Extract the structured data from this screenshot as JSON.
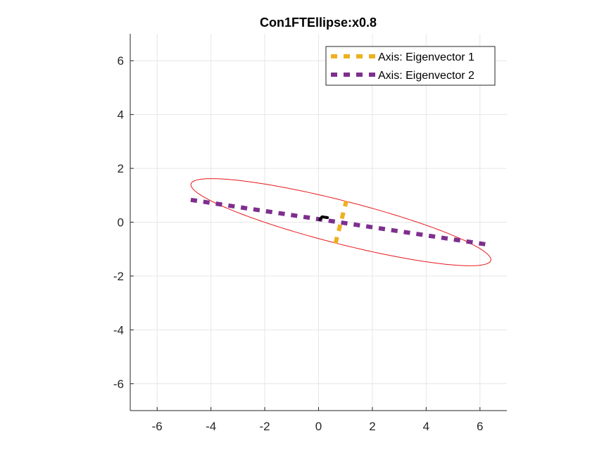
{
  "chart_data": {
    "type": "line",
    "title": "Con1FTEllipse:x0.8",
    "xlabel": "",
    "ylabel": "",
    "xlim": [
      -7,
      7
    ],
    "ylim": [
      -7,
      7
    ],
    "x_ticks": [
      -6,
      -4,
      -2,
      0,
      2,
      4,
      6
    ],
    "y_ticks": [
      -6,
      -4,
      -2,
      0,
      2,
      4,
      6
    ],
    "x_tick_labels": [
      "-6",
      "-4",
      "-2",
      "0",
      "2",
      "4",
      "6"
    ],
    "y_tick_labels": [
      "-6",
      "-4",
      "-2",
      "0",
      "2",
      "4",
      "6"
    ],
    "grid": true,
    "legend_position": "top-right",
    "ellipse": {
      "center": [
        0.83,
        0.0
      ],
      "semi_major": 5.75,
      "semi_minor": 0.8,
      "angle_deg": -14.3,
      "color": "#e8181c"
    },
    "marker_path": {
      "x": [
        0.05,
        0.13,
        0.33
      ],
      "y": [
        0.1,
        0.2,
        0.17
      ],
      "color": "#000000"
    },
    "series": [
      {
        "name": "Axis: Eigenvector 1",
        "x": [
          0.63,
          1.03
        ],
        "y": [
          -0.78,
          0.78
        ],
        "color": "#EDB120",
        "style": "dashed"
      },
      {
        "name": "Axis: Eigenvector 2",
        "x": [
          -4.75,
          6.4
        ],
        "y": [
          0.83,
          -0.85
        ],
        "color": "#7E2F8E",
        "style": "dashed"
      }
    ]
  }
}
